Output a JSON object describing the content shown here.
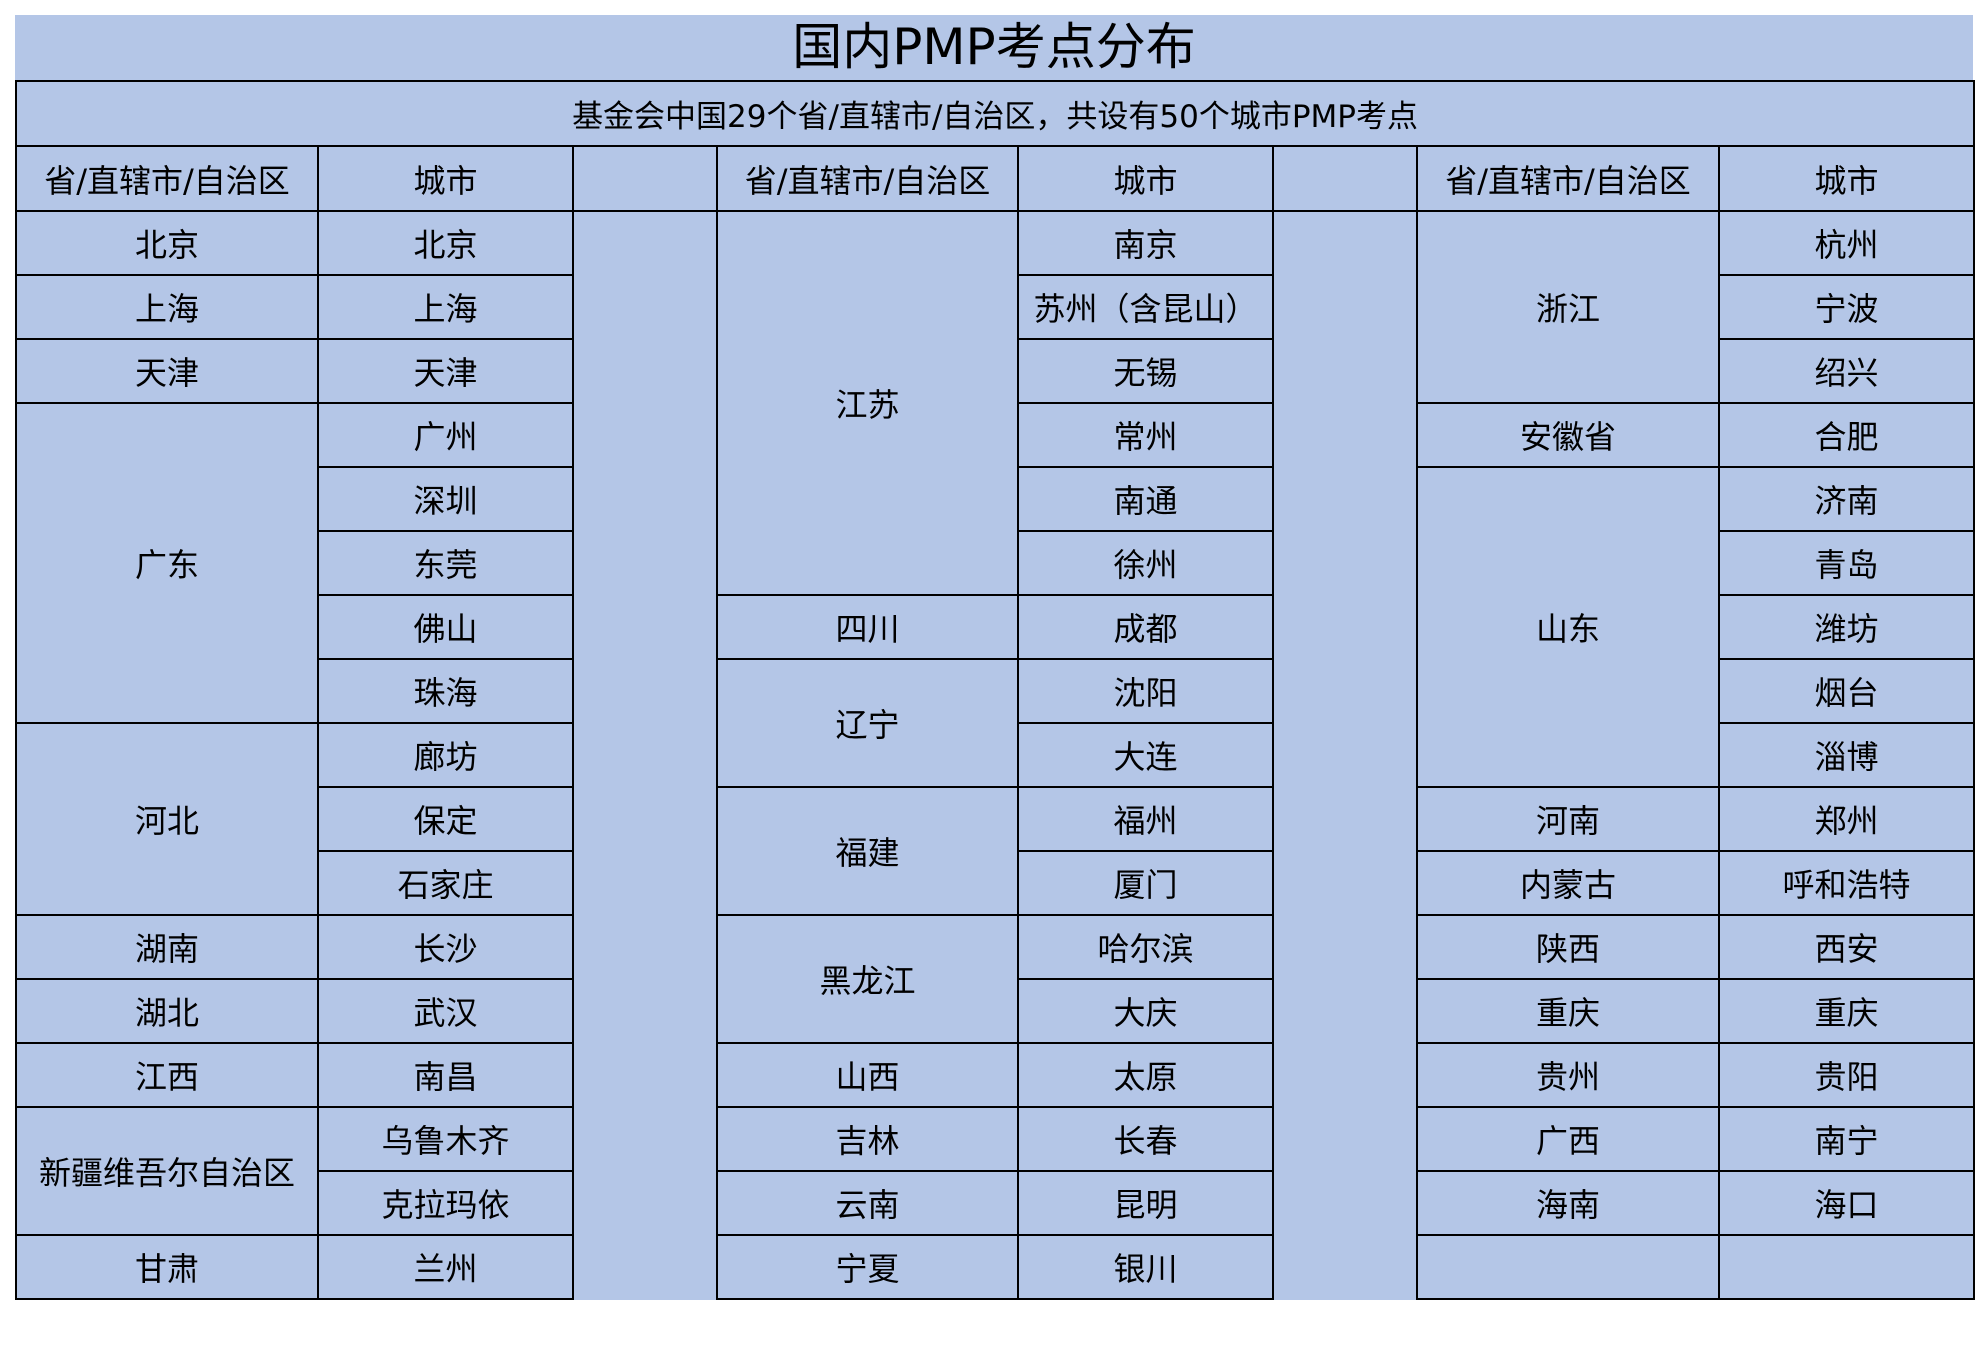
{
  "title": "国内PMP考点分布",
  "subtitle": "基金会中国29个省/直辖市/自治区，共设有50个城市PMP考点",
  "headers": {
    "province": "省/直辖市/自治区",
    "city": "城市"
  },
  "background_color": "#b4c6e7",
  "groups": [
    [
      {
        "province": "北京",
        "cities": [
          "北京"
        ]
      },
      {
        "province": "上海",
        "cities": [
          "上海"
        ]
      },
      {
        "province": "天津",
        "cities": [
          "天津"
        ]
      },
      {
        "province": "广东",
        "cities": [
          "广州",
          "深圳",
          "东莞",
          "佛山",
          "珠海"
        ]
      },
      {
        "province": "河北",
        "cities": [
          "廊坊",
          "保定",
          "石家庄"
        ]
      },
      {
        "province": "湖南",
        "cities": [
          "长沙"
        ]
      },
      {
        "province": "湖北",
        "cities": [
          "武汉"
        ]
      },
      {
        "province": "江西",
        "cities": [
          "南昌"
        ]
      },
      {
        "province": "新疆维吾尔自治区",
        "cities": [
          "乌鲁木齐",
          "克拉玛依"
        ]
      },
      {
        "province": "甘肃",
        "cities": [
          "兰州"
        ]
      }
    ],
    [
      {
        "province": "江苏",
        "cities": [
          "南京",
          "苏州（含昆山）",
          "无锡",
          "常州",
          "南通",
          "徐州"
        ]
      },
      {
        "province": "四川",
        "cities": [
          "成都"
        ]
      },
      {
        "province": "辽宁",
        "cities": [
          "沈阳",
          "大连"
        ]
      },
      {
        "province": "福建",
        "cities": [
          "福州",
          "厦门"
        ]
      },
      {
        "province": "黑龙江",
        "cities": [
          "哈尔滨",
          "大庆"
        ]
      },
      {
        "province": "山西",
        "cities": [
          "太原"
        ]
      },
      {
        "province": "吉林",
        "cities": [
          "长春"
        ]
      },
      {
        "province": "云南",
        "cities": [
          "昆明"
        ]
      },
      {
        "province": "宁夏",
        "cities": [
          "银川"
        ]
      }
    ],
    [
      {
        "province": "浙江",
        "cities": [
          "杭州",
          "宁波",
          "绍兴"
        ]
      },
      {
        "province": "安徽省",
        "cities": [
          "合肥"
        ]
      },
      {
        "province": "山东",
        "cities": [
          "济南",
          "青岛",
          "潍坊",
          "烟台",
          "淄博"
        ]
      },
      {
        "province": "河南",
        "cities": [
          "郑州"
        ]
      },
      {
        "province": "内蒙古",
        "cities": [
          "呼和浩特"
        ]
      },
      {
        "province": "陕西",
        "cities": [
          "西安"
        ]
      },
      {
        "province": "重庆",
        "cities": [
          "重庆"
        ]
      },
      {
        "province": "贵州",
        "cities": [
          "贵阳"
        ]
      },
      {
        "province": "广西",
        "cities": [
          "南宁"
        ]
      },
      {
        "province": "海南",
        "cities": [
          "海口"
        ]
      },
      {
        "province": "",
        "cities": [
          ""
        ]
      }
    ]
  ]
}
